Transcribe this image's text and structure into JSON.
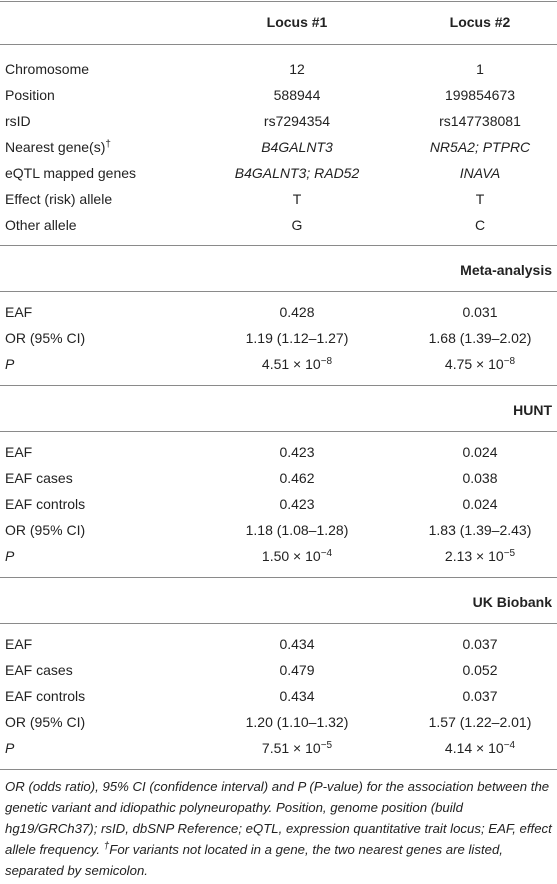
{
  "table": {
    "columns": [
      "Locus #1",
      "Locus #2"
    ],
    "rows": [
      [
        "Chromosome",
        "12",
        "1"
      ],
      [
        "Position",
        "588944",
        "199854673"
      ],
      [
        "rsID",
        "rs7294354",
        "rs147738081"
      ],
      [
        {
          "text": "Nearest gene(s)",
          "sup": "†"
        },
        "B4GALNT3",
        "NR5A2; PTPRC"
      ],
      [
        "eQTL mapped genes",
        "B4GALNT3; RAD52",
        "INAVA"
      ],
      [
        "Effect (risk) allele",
        "T",
        "T"
      ],
      [
        "Other allele",
        "G",
        "C"
      ]
    ],
    "sections": [
      {
        "title": "Meta-analysis",
        "rows": [
          [
            "EAF",
            "0.428",
            "0.031"
          ],
          [
            "OR (95% CI)",
            "1.19 (1.12–1.27)",
            "1.68 (1.39–2.02)"
          ],
          [
            "P",
            {
              "text": "4.51 × 10",
              "sup": "−8"
            },
            {
              "text": "4.75 × 10",
              "sup": "−8"
            }
          ]
        ]
      },
      {
        "title": "HUNT",
        "rows": [
          [
            "EAF",
            "0.423",
            "0.024"
          ],
          [
            "EAF cases",
            "0.462",
            "0.038"
          ],
          [
            "EAF controls",
            "0.423",
            "0.024"
          ],
          [
            "OR (95% CI)",
            "1.18 (1.08–1.28)",
            "1.83 (1.39–2.43)"
          ],
          [
            "P",
            {
              "text": "1.50 × 10",
              "sup": "−4"
            },
            {
              "text": "2.13 × 10",
              "sup": "−5"
            }
          ]
        ]
      },
      {
        "title": "UK Biobank",
        "rows": [
          [
            "EAF",
            "0.434",
            "0.037"
          ],
          [
            "EAF cases",
            "0.479",
            "0.052"
          ],
          [
            "EAF controls",
            "0.434",
            "0.037"
          ],
          [
            "OR (95% CI)",
            "1.20 (1.10–1.32)",
            "1.57 (1.22–2.01)"
          ],
          [
            "P",
            {
              "text": "7.51 × 10",
              "sup": "−5"
            },
            {
              "text": "4.14 × 10",
              "sup": "−4"
            }
          ]
        ]
      }
    ]
  },
  "footnote": {
    "text1": "OR (odds ratio), 95% CI (confidence interval) and P (P-value) for the association between the genetic variant and idiopathic polyneuropathy. Position, genome position (build hg19/GRCh37); rsID, dbSNP Reference; eQTL, expression quantitative trait locus; EAF, effect allele frequency. ",
    "sup": "†",
    "text2": "For variants not located in a gene, the two nearest genes are listed, separated by semicolon."
  }
}
